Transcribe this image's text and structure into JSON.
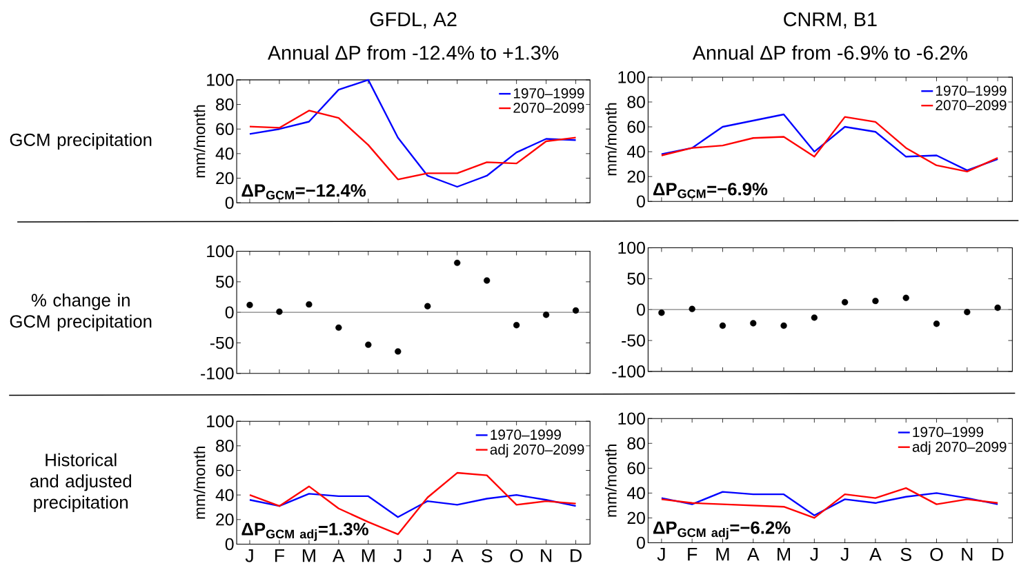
{
  "chart_data": [
    {
      "type": "line",
      "title": "GFDL, A2",
      "subtitle": "Annual ΔP from -12.4% to +1.3%",
      "ylabel": "mm/month",
      "categories": [
        null,
        null,
        null,
        null,
        null,
        null,
        null,
        null,
        null,
        null,
        null,
        null
      ],
      "ylim": [
        0,
        100
      ],
      "yticks": [
        0,
        20,
        40,
        60,
        80,
        100
      ],
      "tick_labels": "y",
      "legend": "top right",
      "series": [
        {
          "name": "1970–1999",
          "color": "#0000ff",
          "values": [
            56,
            60,
            66,
            92,
            100,
            53,
            22,
            13,
            22,
            41,
            52,
            51
          ]
        },
        {
          "name": "2070–2099",
          "color": "#ff0000",
          "values": [
            62,
            61,
            75,
            69,
            47,
            19,
            24,
            24,
            33,
            32,
            50,
            53
          ]
        }
      ],
      "annotations": [
        "\\mbox{ΔP}_{\\mathbf{GCM}}\\mbox{=−12.4\\%}",
        "GCM precipitation"
      ]
    },
    {
      "type": "line",
      "title": "CNRM, B1",
      "subtitle": "Annual ΔP from -6.9% to -6.2%",
      "ylabel": "mm/month",
      "categories": [
        null,
        null,
        null,
        null,
        null,
        null,
        null,
        null,
        null,
        null,
        null,
        null
      ],
      "ylim": [
        0,
        100
      ],
      "yticks": [
        0,
        20,
        40,
        60,
        80,
        100
      ],
      "tick_labels": "y",
      "legend": "top right",
      "series": [
        {
          "name": "1970–1999",
          "color": "#0000ff",
          "values": [
            38,
            43,
            60,
            65,
            70,
            40,
            60,
            56,
            36,
            37,
            25,
            34
          ]
        },
        {
          "name": "2070–2099",
          "color": "#ff0000",
          "values": [
            37,
            43,
            45,
            51,
            52,
            36,
            68,
            64,
            43,
            29,
            24,
            35
          ]
        }
      ],
      "annotations": [
        "\\mbox{ΔP}_{\\mathbf{GCM}}\\mbox{=−6.9\\%}"
      ]
    },
    {
      "type": "scatter",
      "categories": [
        null,
        null,
        null,
        null,
        null,
        null,
        null,
        null,
        null,
        null,
        null,
        null
      ],
      "ylim": [
        -100,
        100
      ],
      "yticks": [
        -100,
        -50,
        0,
        50,
        100
      ],
      "tick_labels": "y",
      "marker": "circle",
      "series": [
        {
          "color": "#000000",
          "values": [
            12,
            1,
            13,
            -25,
            -53,
            -64,
            10,
            81,
            52,
            -21,
            -4,
            3
          ]
        }
      ],
      "ref_lines": [
        {
          "axis": "y",
          "value": 0,
          "color": "#808080"
        }
      ],
      "annotations": [
        "% change in GCM precipitation"
      ]
    },
    {
      "type": "scatter",
      "categories": [
        null,
        null,
        null,
        null,
        null,
        null,
        null,
        null,
        null,
        null,
        null,
        null
      ],
      "ylim": [
        -100,
        100
      ],
      "yticks": [
        -100,
        -50,
        0,
        50,
        100
      ],
      "tick_labels": "y",
      "marker": "circle",
      "series": [
        {
          "color": "#000000",
          "values": [
            -5,
            1,
            -26,
            -22,
            -26,
            -13,
            12,
            14,
            19,
            -23,
            -4,
            3
          ]
        }
      ],
      "ref_lines": [
        {
          "axis": "y",
          "value": 0,
          "color": "#808080"
        }
      ]
    },
    {
      "type": "line",
      "ylabel": "mm/month",
      "categories": [
        "J",
        "F",
        "M",
        "A",
        "M",
        "J",
        "J",
        "A",
        "S",
        "O",
        "N",
        "D"
      ],
      "ylim": [
        0,
        100
      ],
      "yticks": [
        0,
        20,
        40,
        60,
        80,
        100
      ],
      "legend": "top right",
      "series": [
        {
          "name": "1970–1999",
          "color": "#0000ff",
          "values": [
            36,
            31,
            41,
            39,
            39,
            22,
            35,
            32,
            37,
            40,
            36,
            31
          ]
        },
        {
          "name": "adj 2070–2099",
          "color": "#ff0000",
          "values": [
            40,
            31,
            47,
            29,
            18,
            8,
            38,
            58,
            56,
            32,
            35,
            33
          ]
        }
      ],
      "annotations": [
        "\\mbox{ΔP}_{\\mathbf{GCM\\ adj}}\\mbox{=1.3\\%}",
        "Historical and adjusted precipitation"
      ]
    },
    {
      "type": "line",
      "ylabel": "mm/month",
      "categories": [
        "J",
        "F",
        "M",
        "A",
        "M",
        "J",
        "J",
        "A",
        "S",
        "O",
        "N",
        "D"
      ],
      "ylim": [
        0,
        100
      ],
      "yticks": [
        0,
        20,
        40,
        60,
        80,
        100
      ],
      "legend": "top right",
      "series": [
        {
          "name": "1970–1999",
          "color": "#0000ff",
          "values": [
            36,
            31,
            41,
            39,
            39,
            22,
            35,
            32,
            37,
            40,
            36,
            31
          ]
        },
        {
          "name": "adj 2070–2099",
          "color": "#ff0000",
          "values": [
            35,
            32,
            31,
            30,
            29,
            20,
            39,
            36,
            44,
            31,
            35,
            32
          ]
        }
      ],
      "annotations": [
        "\\mbox{ΔP}_{\\mathbf{GCM\\ adj}}\\mbox{=−6.2\\%}"
      ]
    }
  ]
}
